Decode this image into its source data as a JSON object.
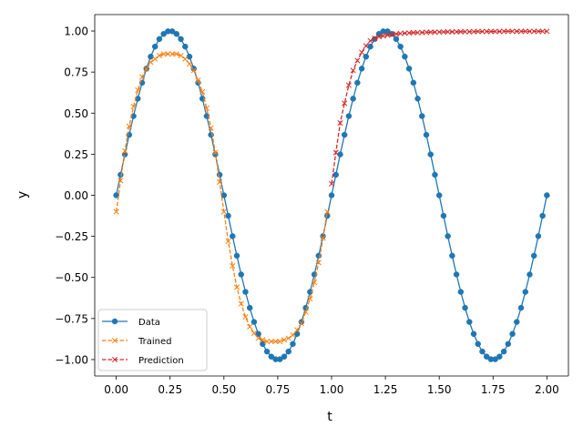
{
  "chart_data": {
    "type": "line",
    "title": "",
    "xlabel": "t",
    "ylabel": "y",
    "xlim": [
      -0.1,
      2.1
    ],
    "ylim": [
      -1.1,
      1.1
    ],
    "x_ticks": [
      0.0,
      0.25,
      0.5,
      0.75,
      1.0,
      1.25,
      1.5,
      1.75,
      2.0
    ],
    "x_tick_labels": [
      "0.00",
      "0.25",
      "0.50",
      "0.75",
      "1.00",
      "1.25",
      "1.50",
      "1.75",
      "2.00"
    ],
    "y_ticks": [
      -1.0,
      -0.75,
      -0.5,
      -0.25,
      0.0,
      0.25,
      0.5,
      0.75,
      1.0
    ],
    "y_tick_labels": [
      "−1.00",
      "−0.75",
      "−0.50",
      "−0.25",
      "0.00",
      "0.25",
      "0.50",
      "0.75",
      "1.00"
    ],
    "grid": false,
    "legend_position": "lower-left",
    "series": [
      {
        "name": "Data",
        "color": "#1f77b4",
        "line": "solid",
        "marker": "circle",
        "x": [
          0.0,
          0.02,
          0.04,
          0.06,
          0.08,
          0.1,
          0.12,
          0.14,
          0.16,
          0.18,
          0.2,
          0.22,
          0.24,
          0.26,
          0.28,
          0.3,
          0.32,
          0.34,
          0.36,
          0.38,
          0.4,
          0.42,
          0.44,
          0.46,
          0.48,
          0.5,
          0.52,
          0.54,
          0.56,
          0.58,
          0.6,
          0.62,
          0.64,
          0.66,
          0.68,
          0.7,
          0.72,
          0.74,
          0.76,
          0.78,
          0.8,
          0.82,
          0.84,
          0.86,
          0.88,
          0.9,
          0.92,
          0.94,
          0.96,
          0.98,
          1.0,
          1.02,
          1.04,
          1.06,
          1.08,
          1.1,
          1.12,
          1.14,
          1.16,
          1.18,
          1.2,
          1.22,
          1.24,
          1.26,
          1.28,
          1.3,
          1.32,
          1.34,
          1.36,
          1.38,
          1.4,
          1.42,
          1.44,
          1.46,
          1.48,
          1.5,
          1.52,
          1.54,
          1.56,
          1.58,
          1.6,
          1.62,
          1.64,
          1.66,
          1.68,
          1.7,
          1.72,
          1.74,
          1.76,
          1.78,
          1.8,
          1.82,
          1.84,
          1.86,
          1.88,
          1.9,
          1.92,
          1.94,
          1.96,
          1.98,
          2.0
        ],
        "y": [
          0.0,
          0.125,
          0.249,
          0.368,
          0.482,
          0.588,
          0.685,
          0.771,
          0.844,
          0.905,
          0.951,
          0.982,
          0.998,
          0.998,
          0.982,
          0.951,
          0.905,
          0.844,
          0.771,
          0.685,
          0.588,
          0.482,
          0.368,
          0.249,
          0.125,
          0.0,
          -0.125,
          -0.249,
          -0.368,
          -0.482,
          -0.588,
          -0.685,
          -0.771,
          -0.844,
          -0.905,
          -0.951,
          -0.982,
          -0.998,
          -0.998,
          -0.982,
          -0.951,
          -0.905,
          -0.844,
          -0.771,
          -0.685,
          -0.588,
          -0.482,
          -0.368,
          -0.249,
          -0.125,
          0.0,
          0.125,
          0.249,
          0.368,
          0.482,
          0.588,
          0.685,
          0.771,
          0.844,
          0.905,
          0.951,
          0.982,
          0.998,
          0.998,
          0.982,
          0.951,
          0.905,
          0.844,
          0.771,
          0.685,
          0.588,
          0.482,
          0.368,
          0.249,
          0.125,
          0.0,
          -0.125,
          -0.249,
          -0.368,
          -0.482,
          -0.588,
          -0.685,
          -0.771,
          -0.844,
          -0.905,
          -0.951,
          -0.982,
          -0.998,
          -0.998,
          -0.982,
          -0.951,
          -0.905,
          -0.844,
          -0.771,
          -0.685,
          -0.588,
          -0.482,
          -0.368,
          -0.249,
          -0.125,
          0.0
        ]
      },
      {
        "name": "Trained",
        "color": "#ff7f0e",
        "line": "dashed",
        "marker": "x",
        "x": [
          0.0,
          0.02,
          0.04,
          0.06,
          0.08,
          0.1,
          0.12,
          0.14,
          0.16,
          0.18,
          0.2,
          0.22,
          0.24,
          0.26,
          0.28,
          0.3,
          0.32,
          0.34,
          0.36,
          0.38,
          0.4,
          0.42,
          0.44,
          0.46,
          0.48,
          0.5,
          0.52,
          0.54,
          0.56,
          0.58,
          0.6,
          0.62,
          0.64,
          0.66,
          0.68,
          0.7,
          0.72,
          0.74,
          0.76,
          0.78,
          0.8,
          0.82,
          0.84,
          0.86,
          0.88,
          0.9,
          0.92,
          0.94,
          0.96,
          0.98
        ],
        "y": [
          -0.1,
          0.09,
          0.27,
          0.42,
          0.54,
          0.64,
          0.72,
          0.77,
          0.81,
          0.83,
          0.85,
          0.86,
          0.86,
          0.86,
          0.86,
          0.85,
          0.83,
          0.8,
          0.76,
          0.7,
          0.63,
          0.53,
          0.41,
          0.26,
          0.08,
          -0.1,
          -0.28,
          -0.43,
          -0.56,
          -0.66,
          -0.74,
          -0.8,
          -0.84,
          -0.87,
          -0.88,
          -0.89,
          -0.89,
          -0.89,
          -0.89,
          -0.88,
          -0.87,
          -0.85,
          -0.82,
          -0.78,
          -0.71,
          -0.63,
          -0.53,
          -0.41,
          -0.26,
          -0.1
        ]
      },
      {
        "name": "Prediction",
        "color": "#d62728",
        "line": "dashed",
        "marker": "x",
        "x": [
          1.0,
          1.02,
          1.04,
          1.06,
          1.08,
          1.1,
          1.12,
          1.14,
          1.16,
          1.18,
          1.2,
          1.22,
          1.24,
          1.26,
          1.28,
          1.3,
          1.32,
          1.34,
          1.36,
          1.38,
          1.4,
          1.42,
          1.44,
          1.46,
          1.48,
          1.5,
          1.52,
          1.54,
          1.56,
          1.58,
          1.6,
          1.62,
          1.64,
          1.66,
          1.68,
          1.7,
          1.72,
          1.74,
          1.76,
          1.78,
          1.8,
          1.82,
          1.84,
          1.86,
          1.88,
          1.9,
          1.92,
          1.94,
          1.96,
          1.98,
          2.0
        ],
        "y": [
          0.07,
          0.26,
          0.44,
          0.56,
          0.67,
          0.76,
          0.82,
          0.87,
          0.91,
          0.94,
          0.955,
          0.965,
          0.97,
          0.975,
          0.98,
          0.982,
          0.985,
          0.987,
          0.988,
          0.99,
          0.99,
          0.991,
          0.992,
          0.993,
          0.993,
          0.994,
          0.994,
          0.995,
          0.995,
          0.995,
          0.996,
          0.996,
          0.996,
          0.996,
          0.997,
          0.997,
          0.997,
          0.997,
          0.997,
          0.997,
          0.998,
          0.998,
          0.998,
          0.998,
          0.998,
          0.998,
          0.998,
          0.998,
          0.998,
          0.998,
          0.998
        ]
      }
    ]
  }
}
